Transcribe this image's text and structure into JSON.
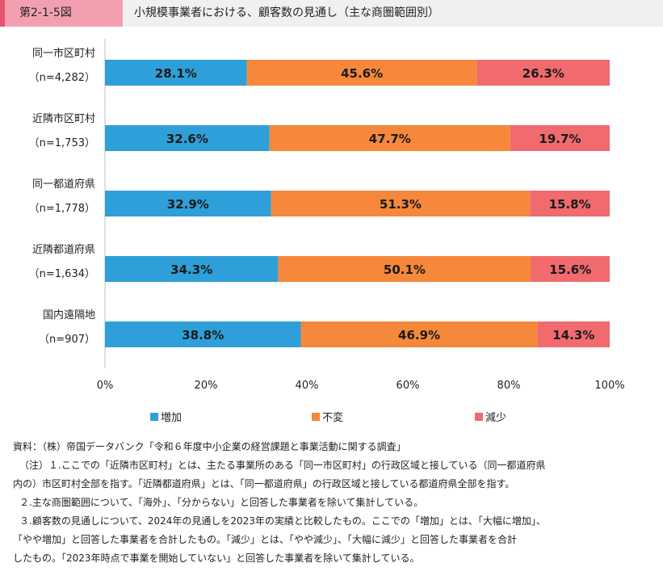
{
  "header": {
    "figure_number": "第2-1-5図",
    "title": "小規模事業者における、顧客数の見通し（主な商圏範囲別）"
  },
  "chart_data": {
    "type": "bar",
    "orientation": "horizontal",
    "stacked": true,
    "categories": [
      {
        "name": "同一市区町村",
        "n": "（n=4,282）"
      },
      {
        "name": "近隣市区町村",
        "n": "（n=1,753）"
      },
      {
        "name": "同一都道府県",
        "n": "（n=1,778）"
      },
      {
        "name": "近隣都道府県",
        "n": "（n=1,634）"
      },
      {
        "name": "国内遠隔地",
        "n": "（n=907）"
      }
    ],
    "series": [
      {
        "name": "増加",
        "color": "#2e9fd8",
        "values": [
          28.1,
          32.6,
          32.9,
          34.3,
          38.8
        ],
        "labels": [
          "28.1%",
          "32.6%",
          "32.9%",
          "34.3%",
          "38.8%"
        ]
      },
      {
        "name": "不変",
        "color": "#f5883a",
        "values": [
          45.6,
          47.7,
          51.3,
          50.1,
          46.9
        ],
        "labels": [
          "45.6%",
          "47.7%",
          "51.3%",
          "50.1%",
          "46.9%"
        ]
      },
      {
        "name": "減少",
        "color": "#f06a6e",
        "values": [
          26.3,
          19.7,
          15.8,
          15.6,
          14.3
        ],
        "labels": [
          "26.3%",
          "19.7%",
          "15.8%",
          "15.6%",
          "14.3%"
        ]
      }
    ],
    "xlim": [
      0,
      100
    ],
    "ticks": [
      "0%",
      "20%",
      "40%",
      "60%",
      "80%",
      "100%"
    ],
    "legend_position": "bottom"
  },
  "notes": {
    "source": "資料：（株）帝国データバンク「令和６年度中小企業の経営課題と事業活動に関する調査」",
    "lines": [
      "（注）１.ここでの「近隣市区町村」とは、主たる事業所のある「同一市区町村」の行政区域と接している（同一都道府県",
      "内の）市区町村全部を指す。「近隣都道府県」とは、「同一都道府県」の行政区域と接している都道府県全部を指す。",
      "２.主な商圏範囲について、「海外」、「分からない」と回答した事業者を除いて集計している。",
      "３.顧客数の見通しについて、2024年の見通しを2023年の実績と比較したもの。ここでの「増加」とは、「大幅に増加」、",
      "「やや増加」と回答した事業者を合計したもの。「減少」とは、「やや減少」、「大幅に減少」と回答した事業者を合計",
      "したもの。「2023年時点で事業を開始していない」と回答した事業者を除いて集計している。"
    ]
  }
}
